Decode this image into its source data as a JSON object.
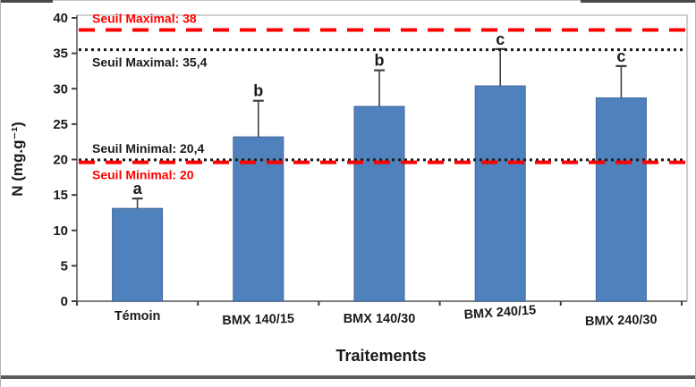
{
  "chart_data": {
    "type": "bar",
    "title": "",
    "xlabel": "Traitements",
    "ylabel": "N (mg.g⁻¹)",
    "categories": [
      "Témoin",
      "BMX 140/15",
      "BMX 140/30",
      "BMX 240/15",
      "BMX 240/30"
    ],
    "values": [
      13.1,
      23.2,
      27.5,
      30.4,
      28.7
    ],
    "error_bar_tops": [
      14.5,
      28.3,
      32.6,
      35.6,
      33.2
    ],
    "significance_letters": [
      "a",
      "b",
      "b",
      "c",
      "c"
    ],
    "ylim": [
      0,
      40
    ],
    "yticks": [
      0,
      5,
      10,
      15,
      20,
      25,
      30,
      35,
      40
    ],
    "grid": "off",
    "legend": "none",
    "bar_color": "#4f81bd",
    "bar_border_color": "#41689b",
    "error_bar_color": "#404040",
    "axis_color": "#7f7f7f",
    "plot_border_color": "#bfbfbf",
    "text_color": "#1a1a1a",
    "threshold_red": "#fe0000",
    "thresholds": [
      {
        "label": "Seuil Maximal: 38",
        "value": 38,
        "drawn_at": 38.3,
        "color": "#fe0000",
        "style": "dashed",
        "label_side": "above"
      },
      {
        "label": "Seuil Maximal: 35,4",
        "value": 35.4,
        "drawn_at": 35.5,
        "color": "#1a1a1a",
        "style": "dotted",
        "label_side": "below"
      },
      {
        "label": "Seuil Minimal: 20,4",
        "value": 20.4,
        "drawn_at": 19.95,
        "color": "#1a1a1a",
        "style": "dotted",
        "label_side": "above"
      },
      {
        "label": "Seuil Minimal: 20",
        "value": 20,
        "drawn_at": 19.6,
        "color": "#fe0000",
        "style": "dashed",
        "label_side": "below"
      }
    ]
  }
}
